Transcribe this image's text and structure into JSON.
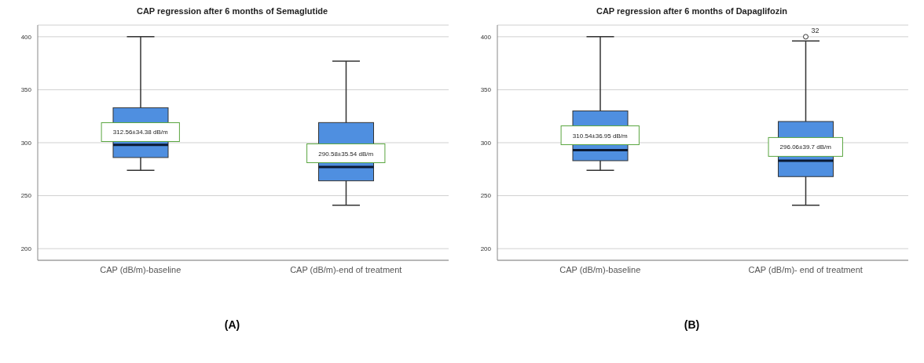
{
  "chart_data": [
    {
      "type": "box",
      "title": "CAP regression after 6 months of Semaglutide",
      "categories": [
        "CAP (dB/m)-baseline",
        "CAP (dB/m)-end of treatment"
      ],
      "color": "#4f8fe0",
      "boxes": [
        {
          "low": 274,
          "q1": 286,
          "median": 298,
          "q3": 333,
          "high": 400
        },
        {
          "low": 241,
          "q1": 264,
          "median": 277,
          "q3": 319,
          "high": 377
        }
      ],
      "ylim": [
        189,
        411
      ],
      "yticks": [
        200,
        250,
        300,
        350,
        400
      ],
      "grid": "y",
      "annotations": [
        {
          "text": "312.56±34.38 dB/m",
          "x": "CAP (dB/m)-baseline",
          "y": 310
        },
        {
          "text": "290.58±35.54 dB/m",
          "x": "CAP (dB/m)-end of treatment",
          "y": 290
        },
        "(A)"
      ]
    },
    {
      "type": "box",
      "title": "CAP regression after 6 months of Dapaglifozin",
      "categories": [
        "CAP (dB/m)-baseline",
        "CAP (dB/m)- end of treatment"
      ],
      "color": "#4f8fe0",
      "boxes": [
        {
          "low": 274,
          "q1": 283,
          "median": 293,
          "q3": 330,
          "high": 400
        },
        {
          "low": 241,
          "q1": 268,
          "median": 283,
          "q3": 320,
          "high": 396,
          "outliers": [
            400
          ]
        }
      ],
      "ylim": [
        189,
        411
      ],
      "yticks": [
        200,
        250,
        300,
        350,
        400
      ],
      "grid": "y",
      "annotations": [
        {
          "text": "310.54±36.95 dB/m",
          "x": "CAP (dB/m)-baseline",
          "y": 307
        },
        {
          "text": "296.06±39.7 dB/m",
          "x": "CAP (dB/m)- end of treatment",
          "y": 296
        },
        "32",
        "(B)"
      ]
    }
  ]
}
